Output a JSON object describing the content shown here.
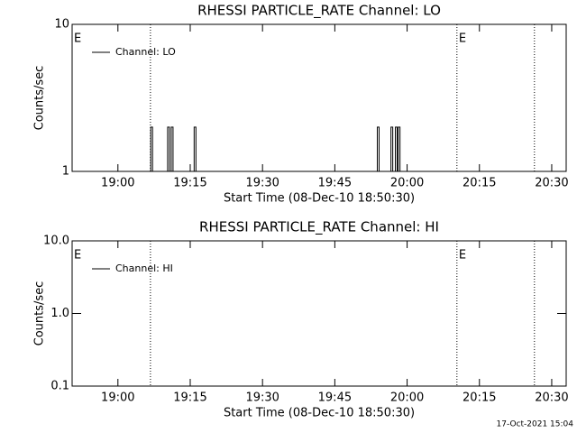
{
  "chart_data": [
    {
      "type": "spike",
      "title": "RHESSI PARTICLE_RATE Channel: LO",
      "xlabel": "Start Time (08-Dec-10 18:50:30)",
      "ylabel": "Counts/sec",
      "log_y": true,
      "legend": "upper left",
      "xlim": [
        "18:50:30",
        "20:33"
      ],
      "xticks": [
        "19:00",
        "19:15",
        "19:30",
        "19:45",
        "20:00",
        "20:15",
        "20:30"
      ],
      "ylim": [
        1,
        10
      ],
      "yticks": [
        1,
        10
      ],
      "series": [
        {
          "name": "Channel: LO",
          "color": "#000000",
          "x": [
            "19:07",
            "19:10:30",
            "19:11:15",
            "19:16",
            "19:54",
            "19:56:50",
            "19:57:45",
            "19:58:20"
          ],
          "values": [
            2,
            2,
            2,
            2,
            2,
            2,
            2,
            2
          ]
        }
      ],
      "flags": [
        "19:06:45",
        "20:10:20",
        "20:26:25"
      ],
      "annotations": [
        {
          "text": "E",
          "x": "18:50:30"
        },
        {
          "text": "E",
          "x": "20:10:20"
        }
      ]
    },
    {
      "type": "spike",
      "title": "RHESSI PARTICLE_RATE Channel: HI",
      "xlabel": "Start Time (08-Dec-10 18:50:30)",
      "ylabel": "Counts/sec",
      "log_y": true,
      "legend": "upper left",
      "xlim": [
        "18:50:30",
        "20:33"
      ],
      "xticks": [
        "19:00",
        "19:15",
        "19:30",
        "19:45",
        "20:00",
        "20:15",
        "20:30"
      ],
      "ylim": [
        0.1,
        10
      ],
      "yticks": [
        0.1,
        {
          "value": 1,
          "label": "1.0"
        },
        {
          "value": 10,
          "label": "10.0"
        }
      ],
      "series": [
        {
          "name": "Channel: HI",
          "color": "#000000",
          "x": [],
          "values": []
        }
      ],
      "flags": [
        "19:06:45",
        "20:10:20",
        "20:26:25"
      ],
      "annotations": [
        {
          "text": "E",
          "x": "18:50:30"
        },
        {
          "text": "E",
          "x": "20:10:20"
        }
      ]
    }
  ],
  "footer": "17-Oct-2021 15:04"
}
